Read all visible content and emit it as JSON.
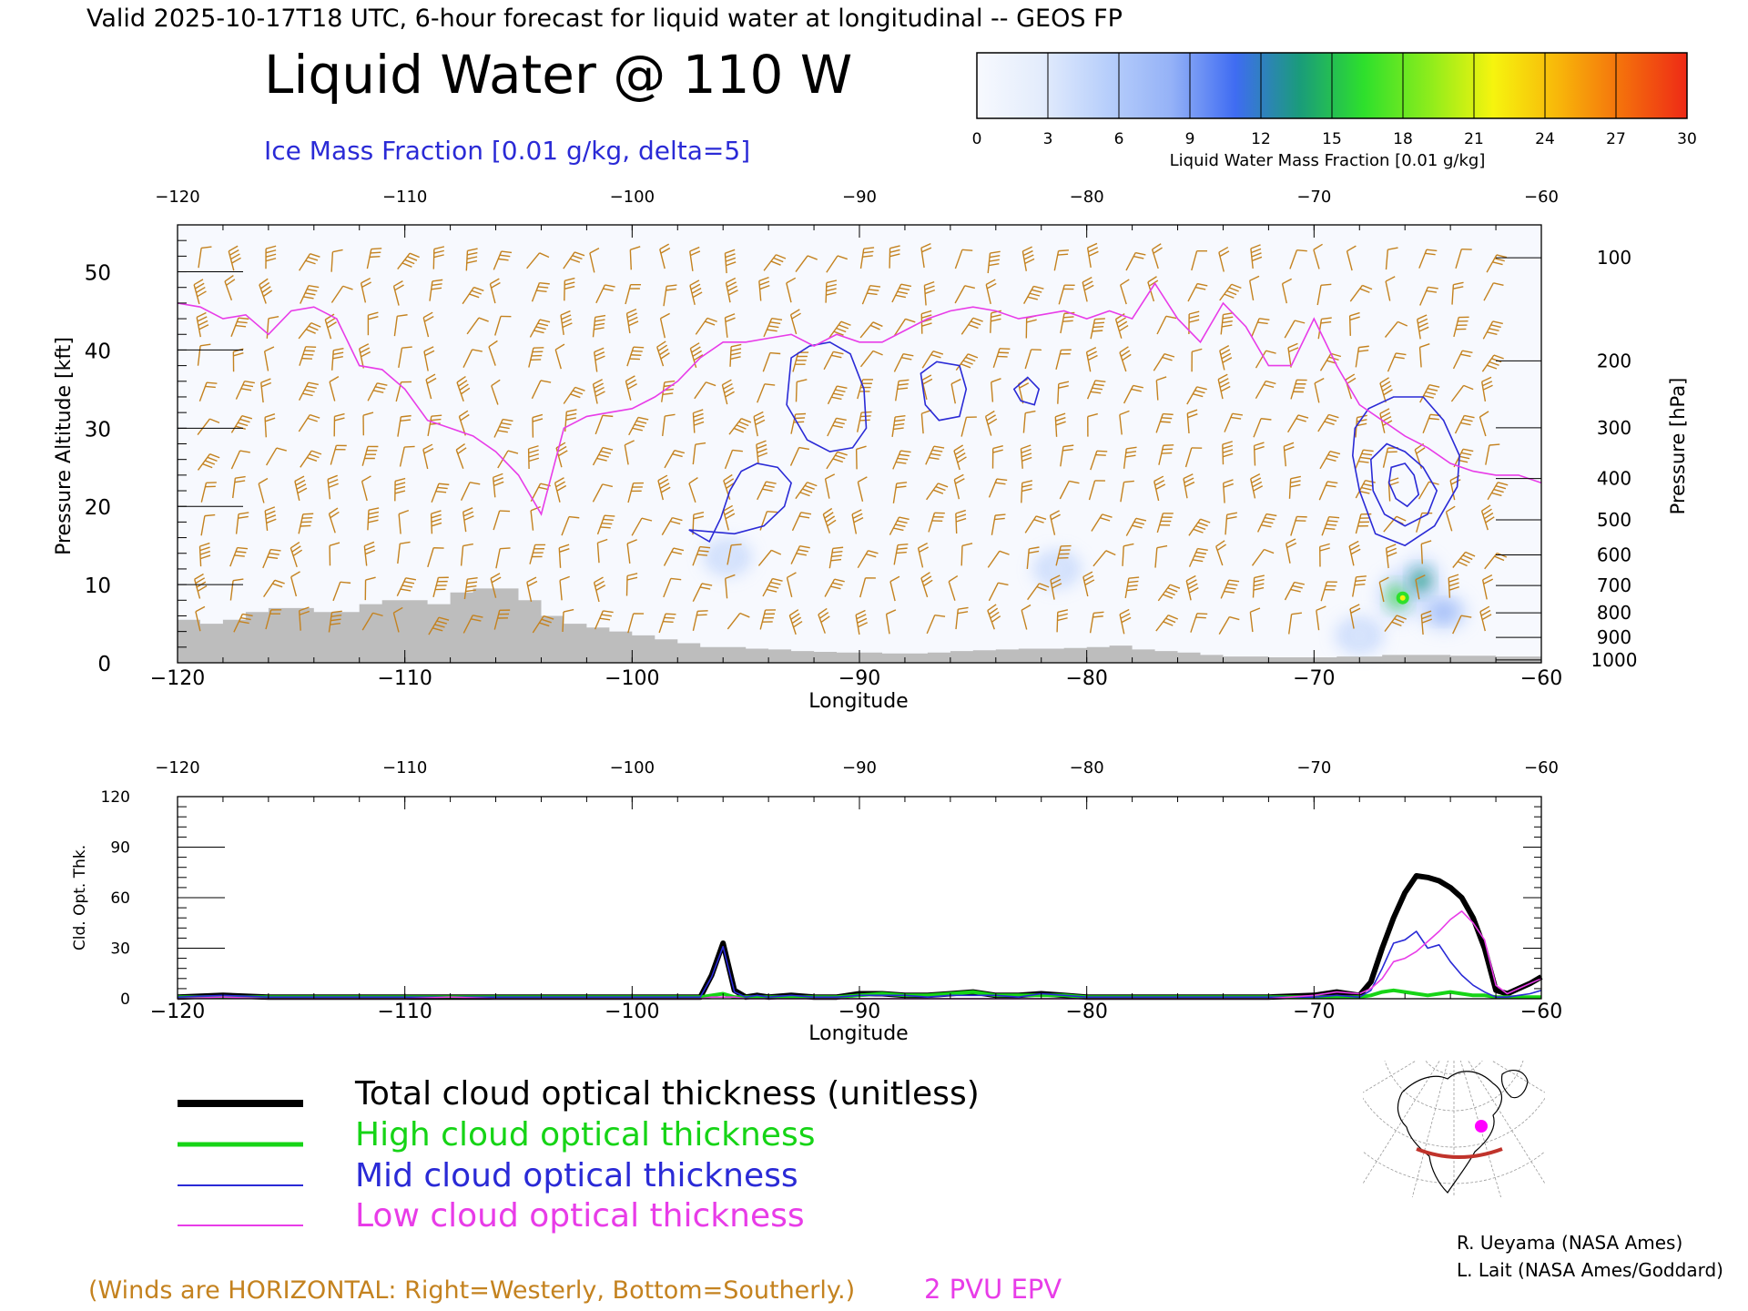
{
  "header": {
    "valid_line": "Valid 2025-10-17T18 UTC, 6-hour forecast for liquid water at longitudinal -- GEOS FP",
    "main_title": "Liquid Water @ 110 W",
    "subtitle": "Ice Mass Fraction [0.01 g/kg, delta=5]"
  },
  "colorbar": {
    "label": "Liquid Water Mass Fraction [0.01 g/kg]",
    "ticks": [
      "0",
      "3",
      "6",
      "9",
      "12",
      "15",
      "18",
      "21",
      "24",
      "27",
      "30"
    ],
    "colors": [
      "#f7f9fe",
      "#e3ecfc",
      "#b8cffb",
      "#95b2f7",
      "#3f6cf2",
      "#1a9c7a",
      "#2ee02c",
      "#8cec1c",
      "#f6f40e",
      "#f8b70a",
      "#f46f0c",
      "#ee2a16"
    ]
  },
  "colors": {
    "ice_contour": "#2a2ad6",
    "tropopause": "#e83ce8",
    "wind_barb": "#c4821f",
    "terrain": "#bdbdbd",
    "total": "#000000",
    "high": "#16d416",
    "mid": "#2a2ad6",
    "low": "#e83ce8"
  },
  "legend": {
    "total": "Total cloud optical thickness (unitless)",
    "high": "High cloud optical thickness",
    "mid": "Mid cloud optical thickness",
    "low": "Low cloud optical thickness"
  },
  "footer": {
    "winds_note": "(Winds are HORIZONTAL: Right=Westerly, Bottom=Southerly.)",
    "epv_label": "2 PVU EPV",
    "credit1": "R. Ueyama (NASA Ames)",
    "credit2": "L. Lait (NASA Ames/Goddard)"
  },
  "chart_data": [
    {
      "type": "heatmap",
      "title": "Liquid Water @ 110 W",
      "xlabel": "Longitude",
      "ylabel": "Pressure Altitude [kft]",
      "y2label": "Pressure [hPa]",
      "xlim": [
        -120,
        -60
      ],
      "ylim": [
        0,
        56
      ],
      "x_ticks": [
        "-120",
        "-110",
        "-100",
        "-90",
        "-80",
        "-70",
        "-60"
      ],
      "y_ticks": [
        "0",
        "10",
        "20",
        "30",
        "40",
        "50"
      ],
      "pressure_ticks": [
        "100",
        "200",
        "300",
        "400",
        "500",
        "600",
        "700",
        "800",
        "900",
        "1000"
      ],
      "tropopause_2pvu_kft": [
        [
          -120,
          46
        ],
        [
          -119,
          45.5
        ],
        [
          -118,
          44
        ],
        [
          -117,
          44.5
        ],
        [
          -116,
          42
        ],
        [
          -115,
          45
        ],
        [
          -114,
          45.5
        ],
        [
          -113,
          44
        ],
        [
          -112,
          38
        ],
        [
          -111,
          37.5
        ],
        [
          -110,
          35
        ],
        [
          -109,
          31
        ],
        [
          -108,
          30
        ],
        [
          -107,
          29
        ],
        [
          -106,
          27
        ],
        [
          -105,
          24
        ],
        [
          -104,
          19
        ],
        [
          -103,
          30
        ],
        [
          -102,
          31.5
        ],
        [
          -101,
          32
        ],
        [
          -100,
          32.5
        ],
        [
          -99,
          34
        ],
        [
          -98,
          36
        ],
        [
          -97,
          39
        ],
        [
          -96,
          41
        ],
        [
          -95,
          41
        ],
        [
          -94,
          41.5
        ],
        [
          -93,
          42
        ],
        [
          -92,
          40.5
        ],
        [
          -91,
          42
        ],
        [
          -90,
          41
        ],
        [
          -89,
          41
        ],
        [
          -88,
          42.5
        ],
        [
          -87,
          44
        ],
        [
          -86,
          45
        ],
        [
          -85,
          45.5
        ],
        [
          -84,
          45
        ],
        [
          -83,
          44
        ],
        [
          -82,
          44.5
        ],
        [
          -81,
          45
        ],
        [
          -80,
          44
        ],
        [
          -79,
          45
        ],
        [
          -78,
          44
        ],
        [
          -77,
          48.5
        ],
        [
          -76,
          44
        ],
        [
          -75,
          41
        ],
        [
          -74,
          46
        ],
        [
          -73,
          43
        ],
        [
          -72,
          38
        ],
        [
          -71,
          38
        ],
        [
          -70,
          44
        ],
        [
          -69,
          38
        ],
        [
          -68,
          33
        ],
        [
          -67,
          31
        ],
        [
          -66,
          29
        ],
        [
          -65,
          27.5
        ],
        [
          -64,
          25.5
        ],
        [
          -63,
          24.5
        ],
        [
          -62,
          24
        ],
        [
          -61,
          24
        ],
        [
          -60,
          23
        ]
      ],
      "terrain_kft": [
        [
          -120,
          5.5
        ],
        [
          -119,
          5
        ],
        [
          -118,
          5.5
        ],
        [
          -117,
          6.5
        ],
        [
          -116,
          7
        ],
        [
          -115,
          7
        ],
        [
          -114,
          6.5
        ],
        [
          -113,
          6.5
        ],
        [
          -112,
          7.5
        ],
        [
          -111,
          8
        ],
        [
          -110,
          8
        ],
        [
          -109,
          7.5
        ],
        [
          -108,
          9
        ],
        [
          -107,
          9.5
        ],
        [
          -106,
          9.5
        ],
        [
          -105,
          8
        ],
        [
          -104,
          6
        ],
        [
          -103,
          5
        ],
        [
          -102,
          4.5
        ],
        [
          -101,
          4
        ],
        [
          -100,
          3.5
        ],
        [
          -99,
          3
        ],
        [
          -98,
          2.5
        ],
        [
          -97,
          2
        ],
        [
          -96,
          2
        ],
        [
          -95,
          1.8
        ],
        [
          -94,
          1.7
        ],
        [
          -93,
          1.5
        ],
        [
          -92,
          1.4
        ],
        [
          -91,
          1.3
        ],
        [
          -90,
          1.3
        ],
        [
          -89,
          1.2
        ],
        [
          -88,
          1.2
        ],
        [
          -87,
          1.3
        ],
        [
          -86,
          1.5
        ],
        [
          -85,
          1.6
        ],
        [
          -84,
          1.7
        ],
        [
          -83,
          1.8
        ],
        [
          -82,
          1.8
        ],
        [
          -81,
          1.9
        ],
        [
          -80,
          2
        ],
        [
          -79,
          2.2
        ],
        [
          -78,
          1.7
        ],
        [
          -77,
          1.5
        ],
        [
          -76,
          1.3
        ],
        [
          -75,
          1
        ],
        [
          -74,
          0.8
        ],
        [
          -73,
          0.8
        ],
        [
          -72,
          0.7
        ],
        [
          -71,
          0.7
        ],
        [
          -70,
          0.7
        ],
        [
          -69,
          0.8
        ],
        [
          -68,
          0.8
        ],
        [
          -67,
          1
        ],
        [
          -66,
          1
        ],
        [
          -65,
          1
        ],
        [
          -64,
          0.9
        ],
        [
          -63,
          0.9
        ],
        [
          -62,
          0.8
        ],
        [
          -61,
          0.8
        ],
        [
          -60,
          0.7
        ]
      ],
      "ice_mass_contours": [
        {
          "value": 5,
          "points": [
            [
              -97.5,
              17
            ],
            [
              -96.6,
              15.5
            ],
            [
              -96.1,
              18.5
            ],
            [
              -95.7,
              22
            ],
            [
              -95.2,
              24.5
            ],
            [
              -94.5,
              25.5
            ],
            [
              -93.6,
              25
            ],
            [
              -93.0,
              23
            ],
            [
              -93.3,
              20
            ],
            [
              -94.2,
              17.5
            ],
            [
              -95.5,
              16.5
            ]
          ]
        },
        {
          "value": 5,
          "points": [
            [
              -93.0,
              39
            ],
            [
              -92.2,
              40.5
            ],
            [
              -91.3,
              41
            ],
            [
              -90.4,
              39.5
            ],
            [
              -89.8,
              35
            ],
            [
              -89.7,
              30
            ],
            [
              -90.3,
              27.5
            ],
            [
              -91.3,
              27
            ],
            [
              -92.3,
              28.5
            ],
            [
              -93.2,
              33
            ]
          ]
        },
        {
          "value": 5,
          "points": [
            [
              -87.3,
              37
            ],
            [
              -86.6,
              38.5
            ],
            [
              -85.6,
              38
            ],
            [
              -85.3,
              35
            ],
            [
              -85.6,
              31.5
            ],
            [
              -86.5,
              31
            ],
            [
              -87.1,
              33
            ]
          ]
        },
        {
          "value": 5,
          "points": [
            [
              -82.6,
              36.5
            ],
            [
              -82.1,
              35
            ],
            [
              -82.3,
              33
            ],
            [
              -82.9,
              33.5
            ],
            [
              -83.2,
              35
            ]
          ]
        },
        {
          "value": 5,
          "points": [
            [
              -68.2,
              30
            ],
            [
              -67.6,
              32.5
            ],
            [
              -66.5,
              34
            ],
            [
              -65.2,
              34
            ],
            [
              -64.3,
              31
            ],
            [
              -63.6,
              26.5
            ],
            [
              -63.7,
              22.5
            ],
            [
              -64.7,
              17.5
            ],
            [
              -66.0,
              15
            ],
            [
              -67.3,
              16.5
            ],
            [
              -68.0,
              22
            ],
            [
              -68.3,
              26.5
            ]
          ]
        },
        {
          "value": 10,
          "points": [
            [
              -67.5,
              26
            ],
            [
              -66.8,
              28
            ],
            [
              -66.0,
              27
            ],
            [
              -65.2,
              25
            ],
            [
              -64.6,
              22
            ],
            [
              -65.0,
              19
            ],
            [
              -66.0,
              17.5
            ],
            [
              -66.9,
              19
            ],
            [
              -67.4,
              22
            ]
          ]
        },
        {
          "value": 15,
          "points": [
            [
              -66.6,
              25
            ],
            [
              -66.0,
              25.5
            ],
            [
              -65.6,
              24
            ],
            [
              -65.4,
              21.5
            ],
            [
              -65.9,
              20
            ],
            [
              -66.4,
              21
            ],
            [
              -66.7,
              23
            ]
          ]
        }
      ],
      "liquid_water_blobs_01gkg": [
        {
          "lon": -95.8,
          "kft": 13.5,
          "value": 3
        },
        {
          "lon": -81.3,
          "kft": 12,
          "value": 2
        },
        {
          "lon": -66.3,
          "kft": 8.5,
          "value": 17
        },
        {
          "lon": -65.3,
          "kft": 10.5,
          "value": 14
        },
        {
          "lon": -64.3,
          "kft": 6.5,
          "value": 8
        },
        {
          "lon": -68.0,
          "kft": 3.5,
          "value": 3
        }
      ]
    },
    {
      "type": "line",
      "xlabel": "Longitude",
      "ylabel": "Cld. Opt. Thk.",
      "xlim": [
        -120,
        -60
      ],
      "ylim": [
        0,
        120
      ],
      "y_ticks": [
        "0",
        "30",
        "60",
        "90",
        "120"
      ],
      "x": [
        -120,
        -118,
        -116,
        -114,
        -112,
        -110,
        -108,
        -106,
        -104,
        -102,
        -100,
        -98,
        -97,
        -96.5,
        -96,
        -95.5,
        -95,
        -94.5,
        -94,
        -93,
        -92,
        -91,
        -90,
        -89,
        -88,
        -87,
        -86,
        -85,
        -84,
        -83,
        -82,
        -81,
        -80,
        -78,
        -76,
        -74,
        -72,
        -70,
        -69,
        -68,
        -67.5,
        -67,
        -66.5,
        -66,
        -65.5,
        -65,
        -64.5,
        -64,
        -63.5,
        -63,
        -62.5,
        -62,
        -61.5,
        -61,
        -60.5,
        -60
      ],
      "series": [
        {
          "name": "Total cloud optical thickness (unitless)",
          "values": [
            1,
            2,
            1,
            1,
            1,
            1,
            1,
            1,
            1,
            1,
            1,
            1,
            1,
            14,
            33,
            5,
            1,
            2,
            1,
            2,
            1,
            1,
            3,
            3,
            2,
            2,
            3,
            4,
            2,
            2,
            3,
            2,
            1,
            1,
            1,
            1,
            1,
            2,
            4,
            2,
            10,
            30,
            48,
            63,
            73,
            72,
            70,
            66,
            60,
            48,
            30,
            5,
            3,
            6,
            9,
            13
          ]
        },
        {
          "name": "High cloud optical thickness",
          "values": [
            1,
            1,
            1,
            1,
            1,
            1,
            1,
            1,
            1,
            1,
            1,
            1,
            1,
            2,
            3,
            1,
            1,
            1,
            1,
            1,
            1,
            1,
            2,
            3,
            2,
            2,
            3,
            4,
            2,
            2,
            2,
            2,
            1,
            1,
            1,
            1,
            1,
            1,
            1,
            1,
            2,
            4,
            5,
            4,
            3,
            2,
            3,
            4,
            3,
            2,
            2,
            1,
            1,
            1,
            1,
            1
          ]
        },
        {
          "name": "Mid cloud optical thickness",
          "values": [
            1,
            2,
            1,
            1,
            1,
            1,
            1,
            1,
            1,
            1,
            1,
            1,
            1,
            13,
            31,
            4,
            1,
            2,
            1,
            2,
            1,
            1,
            2,
            2,
            2,
            1,
            2,
            2,
            2,
            1,
            3,
            2,
            1,
            1,
            1,
            1,
            1,
            1,
            2,
            1,
            5,
            18,
            33,
            35,
            40,
            30,
            32,
            22,
            14,
            8,
            4,
            1,
            1,
            2,
            3,
            5
          ]
        },
        {
          "name": "Low cloud optical thickness",
          "values": [
            0,
            1,
            0,
            0,
            0,
            0,
            1,
            0,
            0,
            0,
            0,
            0,
            0,
            1,
            1,
            1,
            0,
            0,
            0,
            0,
            0,
            0,
            0,
            0,
            0,
            0,
            0,
            0,
            0,
            0,
            0,
            0,
            0,
            0,
            0,
            0,
            0,
            2,
            4,
            3,
            6,
            12,
            22,
            24,
            28,
            34,
            40,
            47,
            52,
            45,
            35,
            8,
            3,
            6,
            9,
            12
          ]
        }
      ]
    }
  ]
}
